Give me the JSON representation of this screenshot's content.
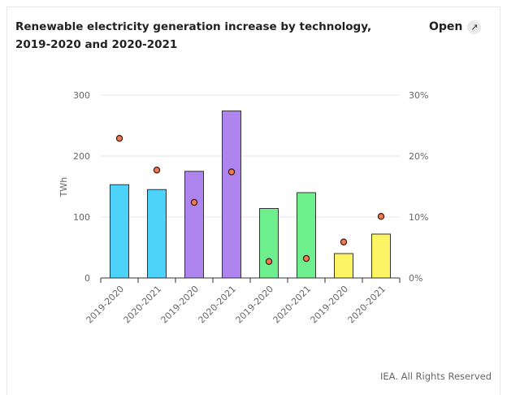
{
  "header": {
    "title": "Renewable electricity generation increase by technology, 2019-2020 and 2020-2021",
    "open_label": "Open",
    "open_icon": "external-link-icon"
  },
  "footer": {
    "credit": "IEA. All Rights Reserved"
  },
  "chart_data": {
    "type": "bar",
    "title": "Renewable electricity generation increase by technology, 2019-2020 and 2020-2021",
    "categories": [
      "2019-2020",
      "2020-2021",
      "2019-2020",
      "2020-2021",
      "2019-2020",
      "2020-2021",
      "2019-2020",
      "2020-2021"
    ],
    "bar_colors": [
      "#4dd3f9",
      "#4dd3f9",
      "#ae84ef",
      "#ae84ef",
      "#6ff08f",
      "#6ff08f",
      "#fcf464",
      "#fcf464"
    ],
    "series": [
      {
        "axis": "left",
        "kind": "bar",
        "values": [
          153,
          145,
          175,
          274,
          114,
          140,
          40,
          72
        ]
      },
      {
        "axis": "right",
        "kind": "point",
        "color": "#f07a4e",
        "values": [
          22.9,
          17.7,
          12.4,
          17.4,
          2.7,
          3.2,
          5.9,
          10.1
        ]
      }
    ],
    "ylabel": "TWh",
    "ylim": [
      0,
      300
    ],
    "y_ticks": [
      0,
      100,
      200,
      300
    ],
    "y2lim": [
      0,
      30
    ],
    "y2_ticks": [
      "0%",
      "10%",
      "20%",
      "30%"
    ],
    "grid": true
  }
}
